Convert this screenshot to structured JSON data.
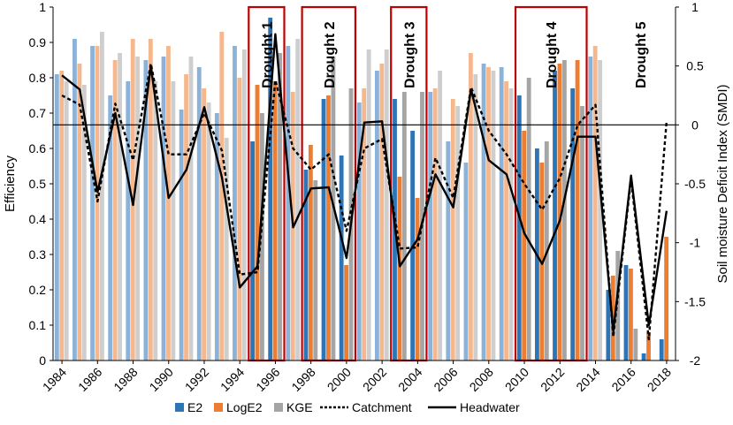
{
  "chart_data": {
    "type": "bar+line",
    "title": "",
    "ylabel_left": "Efficiency",
    "ylabel_right": "Soil moisture Deficit Index (SMDI)",
    "ylim_left": [
      0,
      1
    ],
    "ylim_right": [
      -2,
      1
    ],
    "left_ticks": [
      "0",
      "0.1",
      "0.2",
      "0.3",
      "0.4",
      "0.5",
      "0.6",
      "0.7",
      "0.8",
      "0.9",
      "1"
    ],
    "right_ticks": [
      "-2",
      "-1.5",
      "-1",
      "-0.5",
      "0",
      "0.5",
      "1"
    ],
    "reference_line_smdi": 0,
    "years": [
      1984,
      1985,
      1986,
      1987,
      1988,
      1989,
      1990,
      1991,
      1992,
      1993,
      1994,
      1995,
      1996,
      1997,
      1998,
      1999,
      2000,
      2001,
      2002,
      2003,
      2004,
      2005,
      2006,
      2007,
      2008,
      2009,
      2010,
      2011,
      2012,
      2013,
      2014,
      2015,
      2016,
      2017,
      2018
    ],
    "x_tick_labels": [
      "1984",
      "1986",
      "1988",
      "1990",
      "1992",
      "1994",
      "1996",
      "1998",
      "2000",
      "2002",
      "2004",
      "2006",
      "2008",
      "2010",
      "2012",
      "2014",
      "2016",
      "2018"
    ],
    "bar_series": [
      {
        "name": "E2",
        "color": "#2e75b6",
        "values": [
          0.81,
          0.91,
          0.89,
          0.75,
          0.79,
          0.85,
          0.86,
          0.71,
          0.83,
          0.7,
          0.89,
          0.62,
          0.97,
          0.89,
          0.54,
          0.74,
          0.58,
          0.73,
          0.82,
          0.74,
          0.65,
          0.76,
          0.62,
          0.56,
          0.84,
          0.83,
          0.75,
          0.6,
          0.82,
          0.77,
          0.86,
          0.2,
          0.27,
          0.02,
          0.06
        ]
      },
      {
        "name": "LogE2",
        "color": "#ed7d31",
        "values": [
          0.82,
          0.84,
          0.89,
          0.85,
          0.91,
          0.91,
          0.89,
          0.81,
          0.77,
          0.93,
          0.8,
          0.78,
          0.79,
          0.76,
          0.61,
          0.75,
          0.27,
          0.77,
          0.84,
          0.52,
          0.46,
          0.77,
          0.74,
          0.87,
          0.83,
          0.79,
          0.65,
          0.56,
          0.84,
          0.85,
          0.89,
          0.24,
          0.26,
          0.08,
          0.35
        ]
      },
      {
        "name": "KGE",
        "color": "#a5a5a5",
        "values": [
          0.79,
          0.78,
          0.93,
          0.87,
          0.86,
          0.79,
          0.79,
          0.86,
          0.73,
          0.63,
          0.88,
          0.7,
          0.87,
          0.91,
          0.51,
          0.86,
          0.77,
          0.88,
          0.88,
          0.76,
          0.76,
          0.82,
          0.72,
          0.81,
          0.82,
          0.77,
          0.8,
          0.62,
          0.85,
          0.72,
          0.85,
          0.31,
          0.09,
          0.0,
          0.0
        ]
      }
    ],
    "line_series": [
      {
        "name": "Catchment",
        "style": "dashed",
        "color": "#000000",
        "values": [
          0.25,
          0.17,
          -0.65,
          0.18,
          -0.3,
          0.52,
          -0.25,
          -0.25,
          0.1,
          -0.22,
          -1.27,
          -1.25,
          0.38,
          -0.2,
          -0.38,
          -0.25,
          -0.9,
          -0.2,
          -0.12,
          -1.05,
          -1.04,
          -0.28,
          -0.62,
          0.32,
          -0.05,
          -0.25,
          -0.5,
          -0.72,
          -0.45,
          0.0,
          0.17,
          -1.8,
          -0.46,
          -1.82,
          0.03
        ]
      },
      {
        "name": "Headwater",
        "style": "solid",
        "color": "#000000",
        "values": [
          0.42,
          0.3,
          -0.57,
          0.1,
          -0.68,
          0.5,
          -0.62,
          -0.38,
          0.15,
          -0.45,
          -1.38,
          -1.2,
          0.77,
          -0.87,
          -0.54,
          -0.53,
          -1.13,
          0.02,
          0.03,
          -1.2,
          -0.97,
          -0.42,
          -0.7,
          0.3,
          -0.3,
          -0.42,
          -0.92,
          -1.18,
          -0.81,
          -0.1,
          -0.1,
          -1.75,
          -0.43,
          -1.7,
          -0.73
        ]
      }
    ],
    "droughts": [
      {
        "label": "Drought 1",
        "start": 1995,
        "end": 1996
      },
      {
        "label": "Drought 2",
        "start": 1998,
        "end": 2000
      },
      {
        "label": "Drought 3",
        "start": 2003,
        "end": 2004
      },
      {
        "label": "Drought 4",
        "start": 2010,
        "end": 2013
      },
      {
        "label": "Drought 5",
        "start": null,
        "end": null
      }
    ],
    "drought_box_color": "#c00000",
    "legend": {
      "position": "bottom-center",
      "entries": [
        "E2",
        "LogE2",
        "KGE",
        "Catchment",
        "Headwater"
      ]
    }
  }
}
